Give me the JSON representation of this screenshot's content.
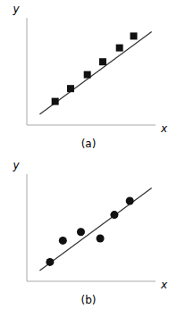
{
  "chart_data": [
    {
      "type": "scatter",
      "title": "(a)",
      "x_label": "x",
      "y_label": "y",
      "xlim": [
        0,
        1
      ],
      "ylim": [
        0,
        1
      ],
      "xticks": [],
      "yticks": [],
      "tick_labels": false,
      "series": [
        {
          "type": "line",
          "color": "#333333",
          "line_style": "solid",
          "x": [
            0.1,
            0.97
          ],
          "values": [
            0.1,
            0.87
          ]
        },
        {
          "type": "scatter",
          "color": "#111111",
          "marker": "square",
          "x": [
            0.22,
            0.34,
            0.47,
            0.59,
            0.72,
            0.83
          ],
          "values": [
            0.22,
            0.34,
            0.47,
            0.59,
            0.72,
            0.83
          ]
        }
      ]
    },
    {
      "type": "scatter",
      "title": "(b)",
      "x_label": "x",
      "y_label": "y",
      "xlim": [
        0,
        1
      ],
      "ylim": [
        0,
        1
      ],
      "xticks": [],
      "yticks": [],
      "tick_labels": false,
      "series": [
        {
          "type": "line",
          "color": "#333333",
          "line_style": "solid",
          "x": [
            0.1,
            0.97
          ],
          "values": [
            0.1,
            0.87
          ]
        },
        {
          "type": "scatter",
          "color": "#111111",
          "marker": "circle",
          "x": [
            0.18,
            0.28,
            0.42,
            0.57,
            0.68,
            0.8
          ],
          "values": [
            0.18,
            0.38,
            0.46,
            0.4,
            0.62,
            0.75
          ]
        }
      ]
    }
  ]
}
